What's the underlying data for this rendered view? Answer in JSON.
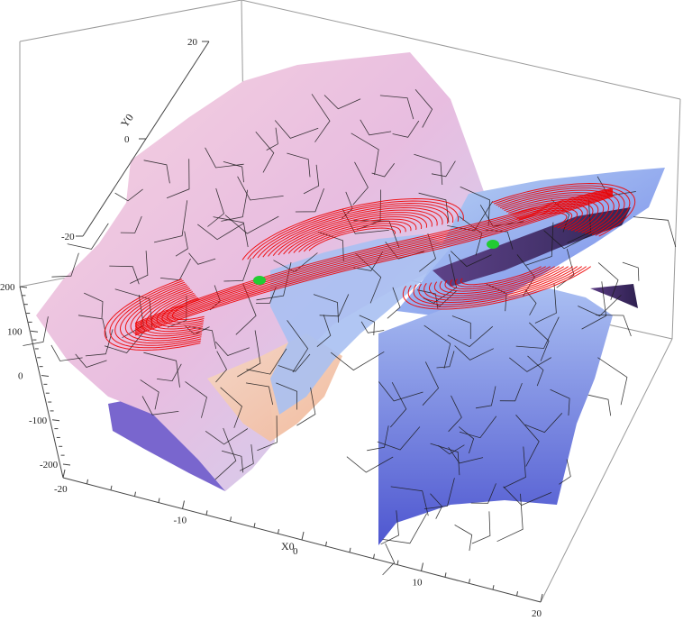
{
  "chart_data": {
    "type": "surface3d",
    "axes": {
      "x": {
        "label": "X0",
        "ticks": [
          "-20",
          "-10",
          "0",
          "10",
          "20"
        ]
      },
      "y": {
        "label": "Y0",
        "ticks": [
          "-20",
          "0",
          "20"
        ]
      },
      "z": {
        "label": "",
        "ticks": [
          "-200",
          "-100",
          "0",
          "100",
          "200"
        ]
      }
    },
    "zlim": [
      -200,
      200
    ],
    "xlim": [
      -20,
      20
    ],
    "ylim": [
      -20,
      20
    ],
    "surface_colors": {
      "pink": "#f3c3d9",
      "light_blue": "#b9d3f3",
      "mid_blue": "#6f86e6",
      "dark_purple": "#3f2a66",
      "peach": "#f4c4a4"
    },
    "orbit_color": "#ee0000",
    "marker_color": "#22cc33",
    "markers": [
      {
        "name": "fixed-point-left"
      },
      {
        "name": "fixed-point-right"
      }
    ],
    "grid": false,
    "box": true
  }
}
